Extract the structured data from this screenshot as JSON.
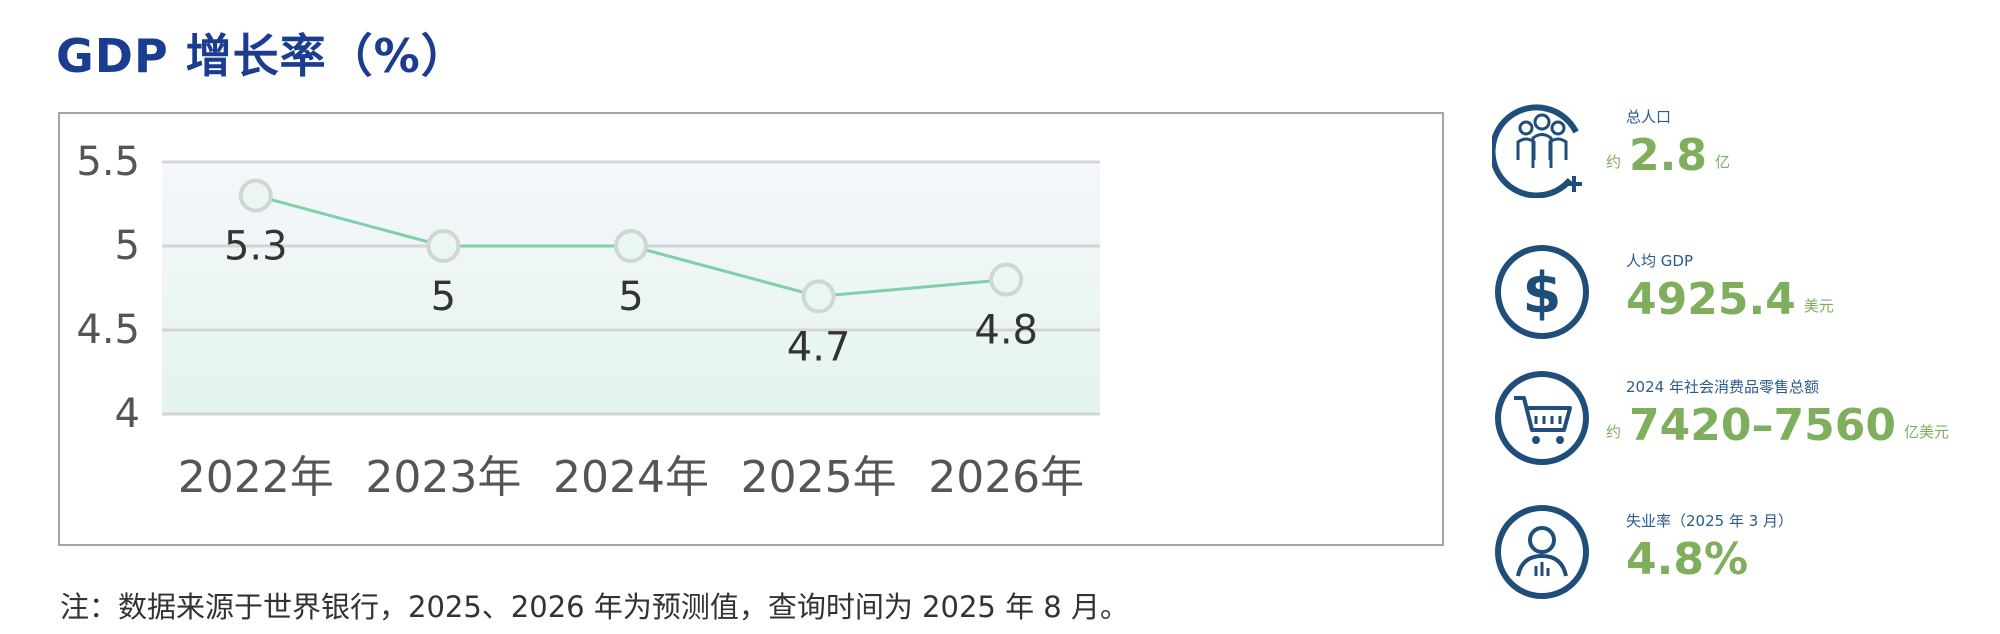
{
  "title": "GDP 增长率（%）",
  "note": "注：数据来源于世界银行，2025、2026 年为预测值，查询时间为 2025 年 8 月。",
  "colors": {
    "title": "#1a3d8f",
    "line": "#7fd0a8",
    "stat_value": "#7fae5c",
    "stat_label": "#2a5a8f",
    "icon": "#1f4e7a"
  },
  "chart_data": {
    "type": "line",
    "title": "GDP 增长率（%）",
    "categories": [
      "2022年",
      "2023年",
      "2024年",
      "2025年",
      "2026年"
    ],
    "series": [
      {
        "values": [
          5.3,
          5.0,
          5.0,
          4.7,
          4.8
        ]
      }
    ],
    "data_labels": [
      "5.3",
      "5",
      "5",
      "4.7",
      "4.8"
    ],
    "y_ticks": [
      "5.5",
      "5",
      "4.5",
      "4"
    ],
    "ylim": [
      4,
      5.5
    ],
    "grid": true,
    "legend": "none"
  },
  "stats": [
    {
      "icon": "people-icon",
      "label": "总人口",
      "prefix": "约",
      "value": "2.8",
      "unit": "亿"
    },
    {
      "icon": "dollar-icon",
      "label": "人均 GDP",
      "prefix": "",
      "value": "4925.4",
      "unit": "美元"
    },
    {
      "icon": "cart-icon",
      "label": "2024 年社会消费品零售总额",
      "prefix": "约",
      "value": "7420–7560",
      "unit": "亿美元"
    },
    {
      "icon": "unemployed-person-icon",
      "label": "失业率（2025 年 3 月）",
      "prefix": "",
      "value": "4.8%",
      "unit": ""
    }
  ]
}
